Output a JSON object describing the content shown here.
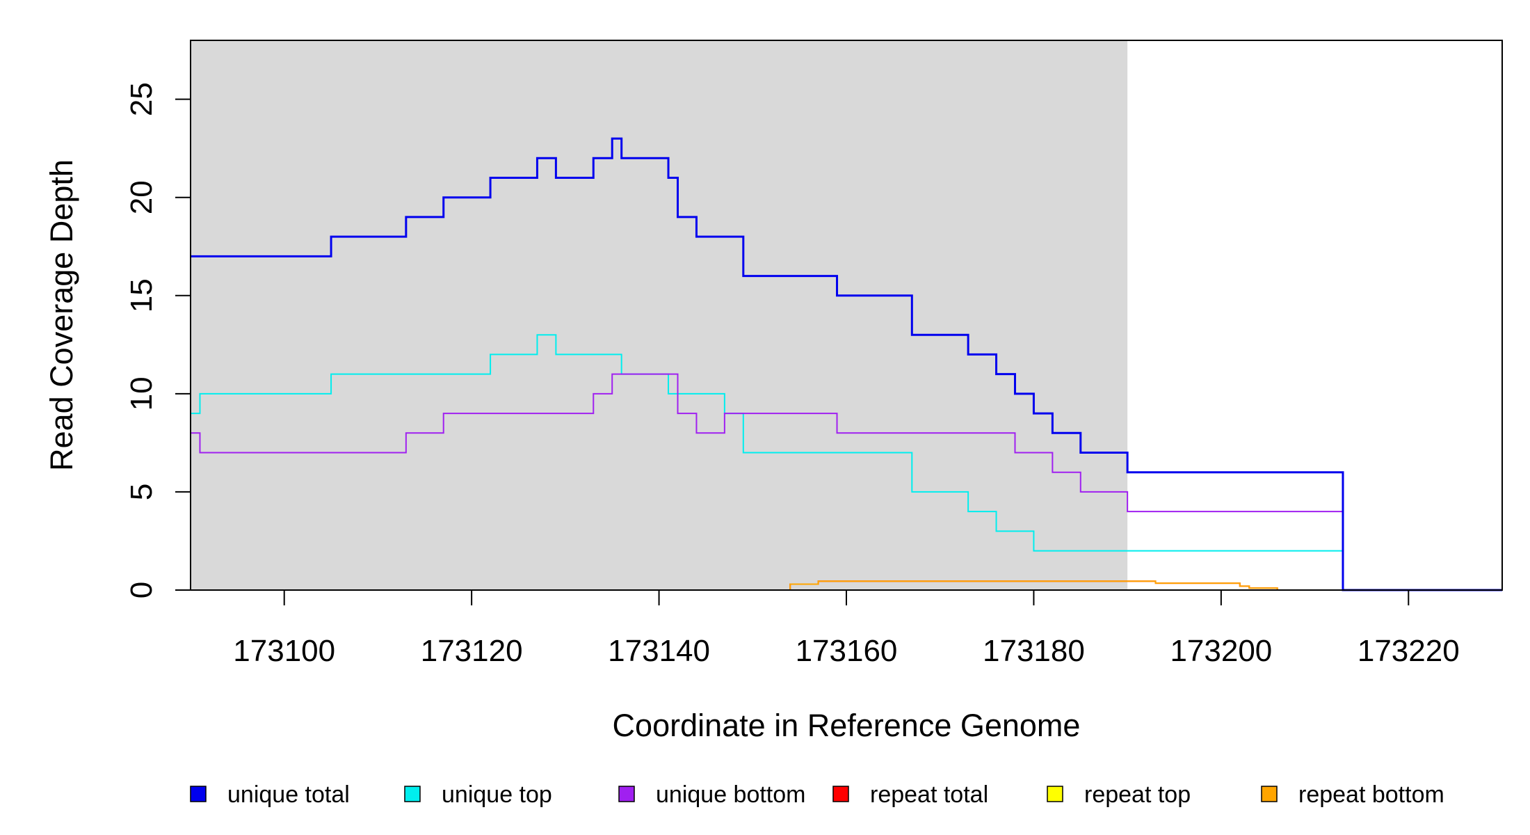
{
  "chart_data": {
    "type": "line",
    "step": true,
    "xlabel": "Coordinate in Reference Genome",
    "ylabel": "Read Coverage Depth",
    "xlim": [
      173090,
      173230
    ],
    "ylim": [
      0,
      28
    ],
    "xticks": [
      173100,
      173120,
      173140,
      173160,
      173180,
      173200,
      173220
    ],
    "yticks": [
      0,
      5,
      10,
      15,
      20,
      25
    ],
    "shaded_region": {
      "from": 173090,
      "to": 173190,
      "color": "#d9d9d9"
    },
    "legend_position": "bottom",
    "series": [
      {
        "name": "unique total",
        "color": "#0000ee",
        "width": 3,
        "points": [
          [
            173090,
            17
          ],
          [
            173105,
            18
          ],
          [
            173113,
            19
          ],
          [
            173117,
            20
          ],
          [
            173122,
            21
          ],
          [
            173127,
            22
          ],
          [
            173129,
            21
          ],
          [
            173133,
            22
          ],
          [
            173135,
            23
          ],
          [
            173136,
            22
          ],
          [
            173141,
            21
          ],
          [
            173142,
            19
          ],
          [
            173144,
            18
          ],
          [
            173149,
            16
          ],
          [
            173159,
            15
          ],
          [
            173167,
            13
          ],
          [
            173173,
            12
          ],
          [
            173176,
            11
          ],
          [
            173178,
            10
          ],
          [
            173180,
            9
          ],
          [
            173182,
            8
          ],
          [
            173185,
            7
          ],
          [
            173190,
            6
          ],
          [
            173213,
            0
          ],
          [
            173230,
            0
          ]
        ]
      },
      {
        "name": "unique top",
        "color": "#00eeee",
        "width": 2,
        "points": [
          [
            173090,
            9
          ],
          [
            173091,
            10
          ],
          [
            173105,
            11
          ],
          [
            173122,
            12
          ],
          [
            173127,
            13
          ],
          [
            173129,
            12
          ],
          [
            173136,
            11
          ],
          [
            173141,
            10
          ],
          [
            173147,
            9
          ],
          [
            173149,
            7
          ],
          [
            173167,
            5
          ],
          [
            173173,
            4
          ],
          [
            173176,
            3
          ],
          [
            173180,
            2
          ],
          [
            173213,
            0
          ],
          [
            173230,
            0
          ]
        ]
      },
      {
        "name": "unique bottom",
        "color": "#a020f0",
        "width": 2,
        "points": [
          [
            173090,
            8
          ],
          [
            173091,
            7
          ],
          [
            173113,
            8
          ],
          [
            173117,
            9
          ],
          [
            173133,
            10
          ],
          [
            173135,
            11
          ],
          [
            173142,
            9
          ],
          [
            173144,
            8
          ],
          [
            173147,
            9
          ],
          [
            173159,
            8
          ],
          [
            173178,
            7
          ],
          [
            173182,
            6
          ],
          [
            173185,
            5
          ],
          [
            173190,
            4
          ],
          [
            173213,
            0
          ],
          [
            173230,
            0
          ]
        ]
      },
      {
        "name": "repeat total",
        "color": "#ff0000",
        "width": 2,
        "points": [
          [
            173090,
            0
          ],
          [
            173154,
            0.3
          ],
          [
            173157,
            0.45
          ],
          [
            173193,
            0.35
          ],
          [
            173202,
            0.2
          ],
          [
            173203,
            0.1
          ],
          [
            173206,
            0
          ],
          [
            173230,
            0
          ]
        ]
      },
      {
        "name": "repeat top",
        "color": "#ffff00",
        "width": 1,
        "points": [
          [
            173090,
            0
          ],
          [
            173230,
            0
          ]
        ]
      },
      {
        "name": "repeat bottom",
        "color": "#ffa500",
        "width": 2,
        "points": [
          [
            173090,
            0
          ],
          [
            173154,
            0.3
          ],
          [
            173157,
            0.45
          ],
          [
            173193,
            0.35
          ],
          [
            173202,
            0.2
          ],
          [
            173203,
            0.1
          ],
          [
            173206,
            0
          ],
          [
            173230,
            0
          ]
        ]
      }
    ]
  }
}
